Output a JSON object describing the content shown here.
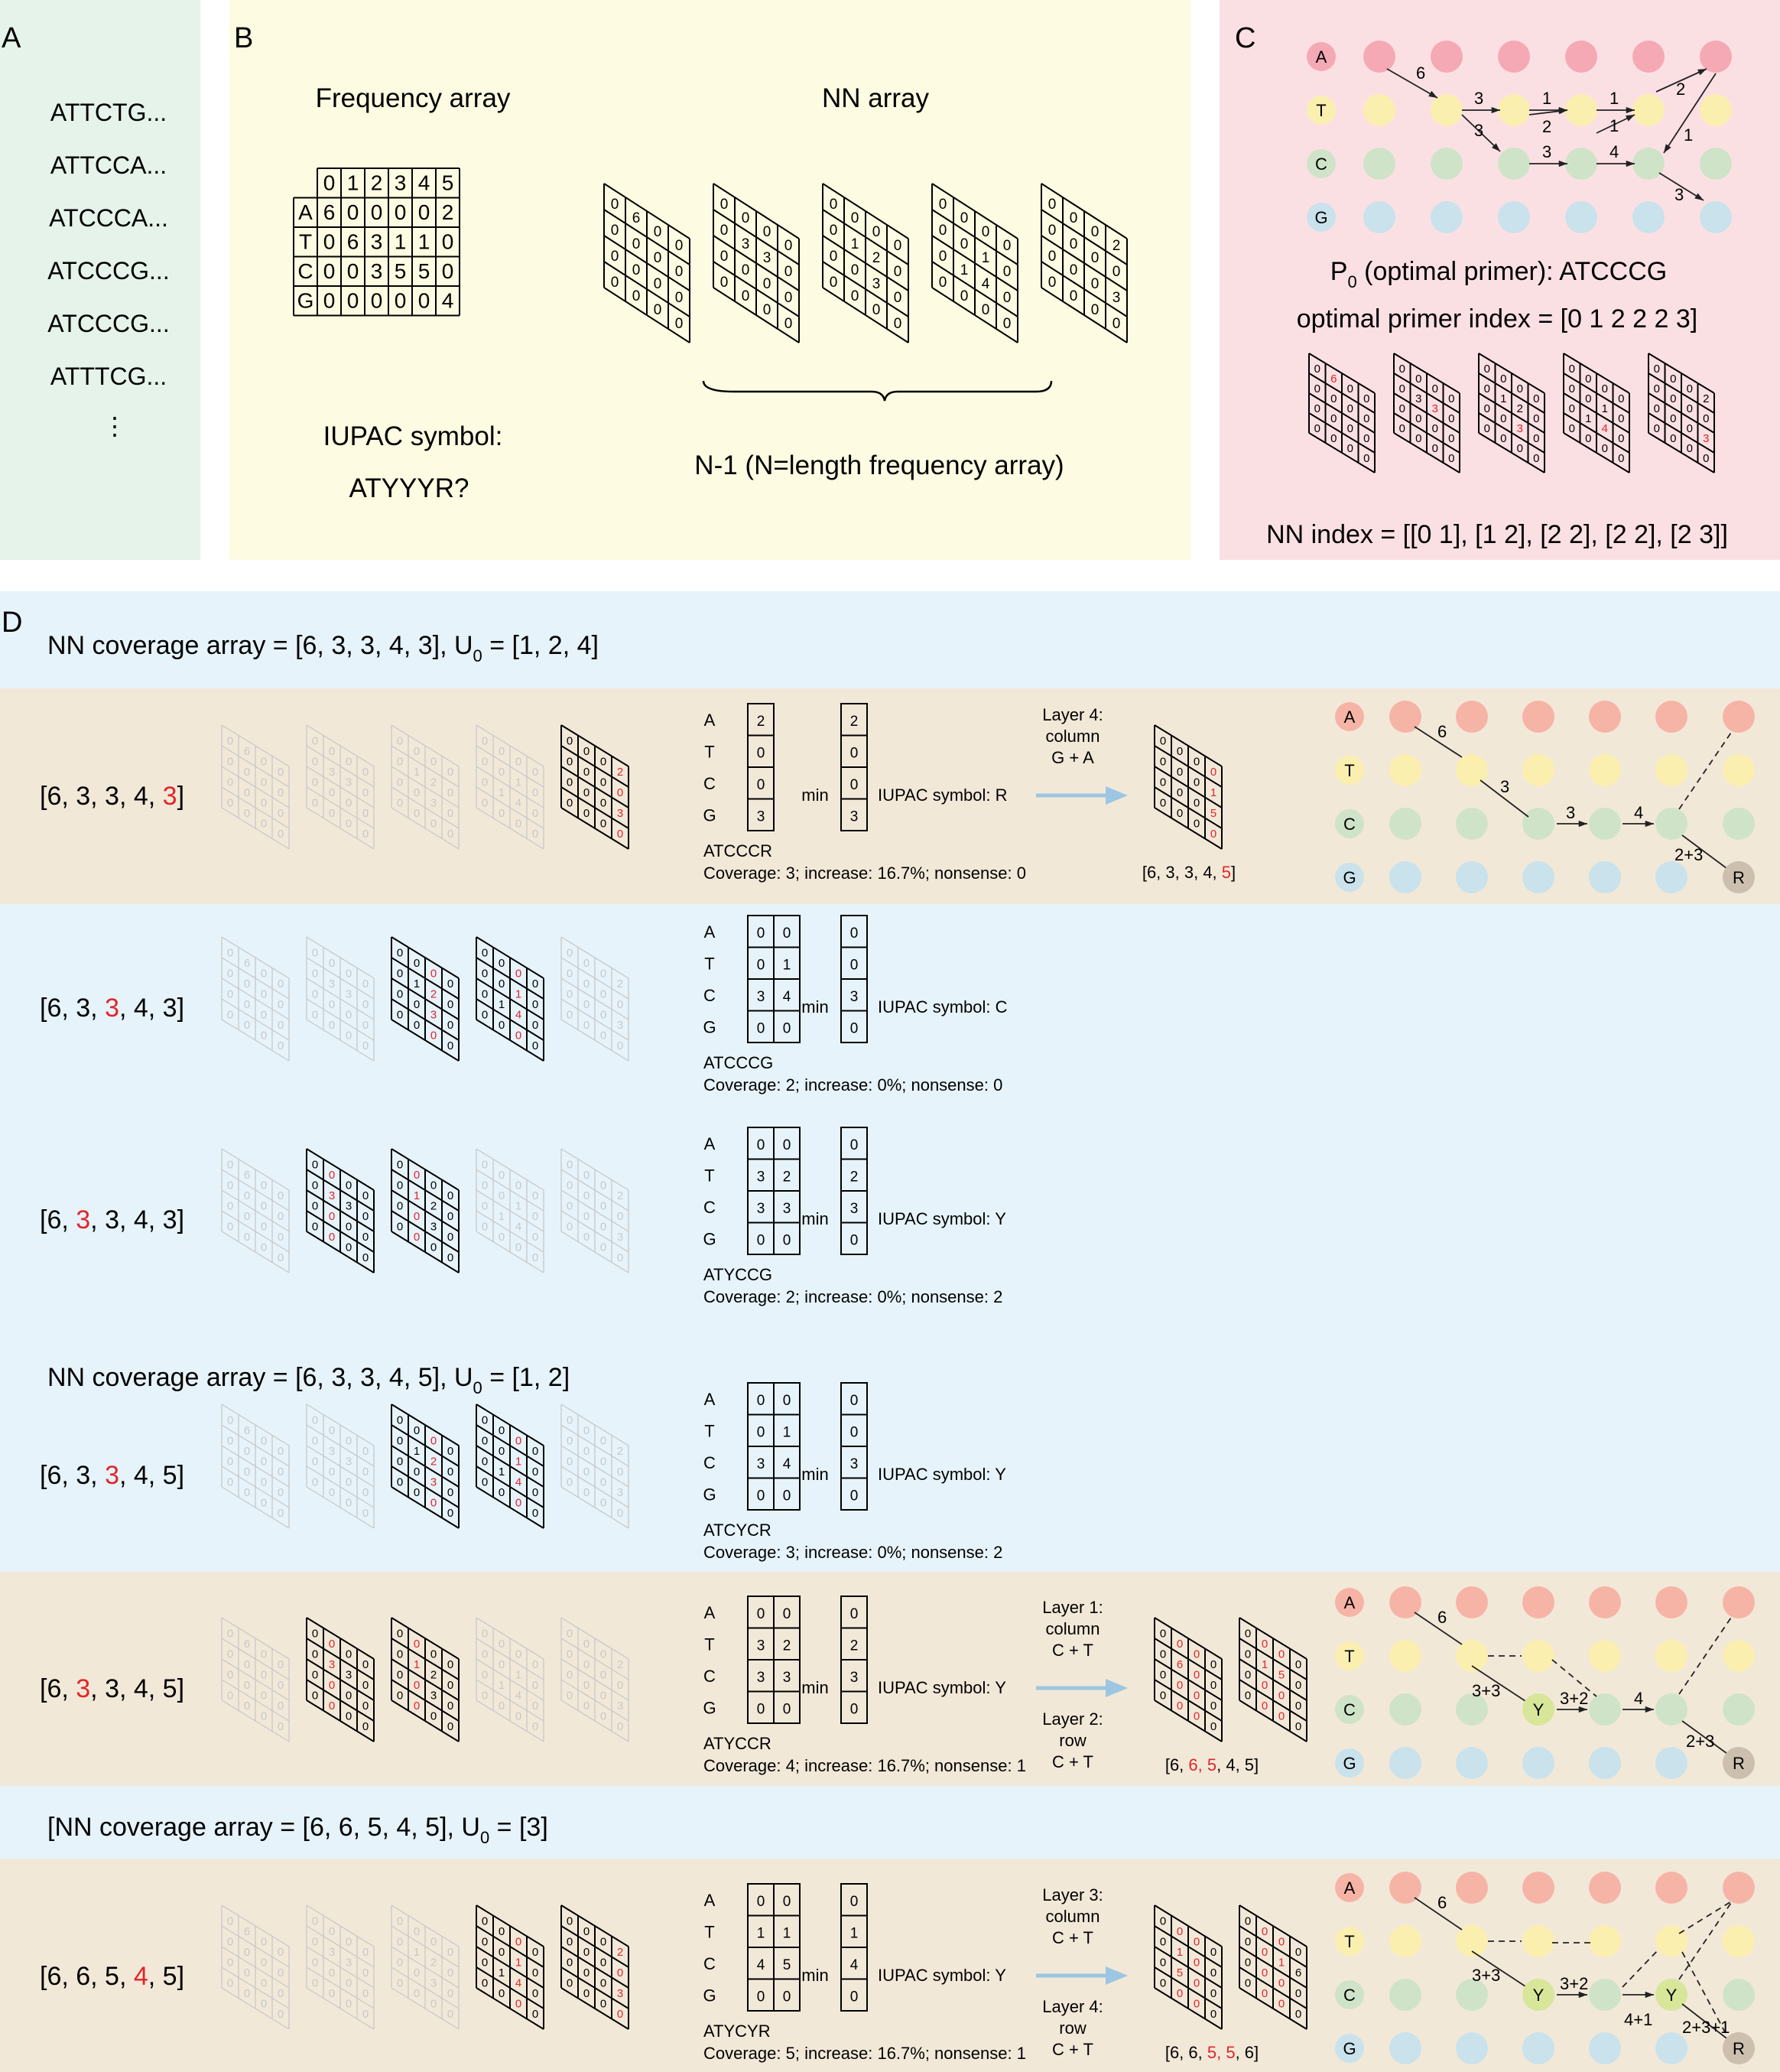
{
  "panelA": {
    "letter": "A",
    "sequences": [
      "ATTCTG...",
      "ATTCCA...",
      "ATCCCA...",
      "ATCCCG...",
      "ATCCCG...",
      "ATTTCG..."
    ],
    "ellipsis": "⋮"
  },
  "panelB": {
    "letter": "B",
    "freq_title": "Frequency array",
    "nn_title": "NN array",
    "freq_header": [
      "0",
      "1",
      "2",
      "3",
      "4",
      "5"
    ],
    "freq_rows": [
      {
        "base": "A",
        "values": [
          "6",
          "0",
          "0",
          "0",
          "0",
          "2"
        ]
      },
      {
        "base": "T",
        "values": [
          "0",
          "6",
          "3",
          "1",
          "1",
          "0"
        ]
      },
      {
        "base": "C",
        "values": [
          "0",
          "0",
          "3",
          "5",
          "5",
          "0"
        ]
      },
      {
        "base": "G",
        "values": [
          "0",
          "0",
          "0",
          "0",
          "0",
          "4"
        ]
      }
    ],
    "iupac_label": "IUPAC symbol:",
    "iupac_value": "ATYYYR?",
    "n_minus_1": "N-1 (N=length frequency array)"
  },
  "panelC": {
    "letter": "C",
    "bases": [
      "A",
      "T",
      "C",
      "G"
    ],
    "edge_labels": [
      "6",
      "3",
      "3",
      "1",
      "2",
      "1",
      "1",
      "3",
      "4",
      "2",
      "1",
      "3"
    ],
    "p0_prefix": "P",
    "p0_sub": "0",
    "p0_rest": " (optimal primer): ATCCCG",
    "optimal_index": "optimal primer index = [0 1 2 2 2 3]",
    "nn_index": "NN index = [[0 1], [1 2], [2 2], [2 2], [2 3]]"
  },
  "panelD": {
    "letter": "D",
    "coverage1_prefix": "NN coverage array = [6, 3, 3, 4, 3],   U",
    "coverage1_sub": "0",
    "coverage1_suffix": " = [1, 2, 4]",
    "coverage2_prefix": "NN coverage array = [6, 3, 3, 4, 5],   U",
    "coverage2_sub": "0",
    "coverage2_suffix": " = [1, 2]",
    "coverage3_prefix": "[NN coverage array = [6, 6, 5, 4, 5],   U",
    "coverage3_sub": "0",
    "coverage3_suffix": " = [3]",
    "bases": [
      "A",
      "T",
      "C",
      "G"
    ],
    "min_label": "min",
    "rows": [
      {
        "arr_pre": "[6, 3, 3, 4, ",
        "arr_red": "3",
        "arr_post": "]",
        "col1": [
          "2",
          "0",
          "0",
          "3"
        ],
        "col2": null,
        "min": [
          "2",
          "0",
          "0",
          "3"
        ],
        "iupac": "IUPAC symbol: R",
        "seq": "ATCCCR",
        "cov": "Coverage: 3; increase: 16.7%; nonsense: 0",
        "op1": "Layer 4:",
        "op1b": "column",
        "op1c": "G + A",
        "op2": "",
        "op2b": "",
        "op2c": "",
        "result_pre": "[6, 3, 3, 4, ",
        "result_red": "5",
        "result_post": "]"
      },
      {
        "arr_pre": "[6, 3, ",
        "arr_red": "3",
        "arr_post": ", 4, 3]",
        "col1": [
          "0",
          "0",
          "3",
          "0"
        ],
        "col2": [
          "0",
          "1",
          "4",
          "0"
        ],
        "min": [
          "0",
          "0",
          "3",
          "0"
        ],
        "iupac": "IUPAC symbol: C",
        "seq": "ATCCCG",
        "cov": "Coverage: 2; increase: 0%; nonsense: 0"
      },
      {
        "arr_pre": "[6, ",
        "arr_red": "3",
        "arr_post": ", 3, 4, 3]",
        "col1": [
          "0",
          "3",
          "3",
          "0"
        ],
        "col2": [
          "0",
          "2",
          "3",
          "0"
        ],
        "min": [
          "0",
          "2",
          "3",
          "0"
        ],
        "iupac": "IUPAC symbol: Y",
        "seq": "ATYCCG",
        "cov": "Coverage: 2; increase: 0%; nonsense: 2"
      },
      {
        "arr_pre": "[6, 3, ",
        "arr_red": "3",
        "arr_post": ", 4, 5]",
        "col1": [
          "0",
          "0",
          "3",
          "0"
        ],
        "col2": [
          "0",
          "1",
          "4",
          "0"
        ],
        "min": [
          "0",
          "0",
          "3",
          "0"
        ],
        "iupac": "IUPAC symbol: Y",
        "seq": "ATCYCR",
        "cov": "Coverage: 3; increase: 0%; nonsense: 2"
      },
      {
        "arr_pre": "[6, ",
        "arr_red": "3",
        "arr_post": ", 3, 4, 5]",
        "col1": [
          "0",
          "3",
          "3",
          "0"
        ],
        "col2": [
          "0",
          "2",
          "3",
          "0"
        ],
        "min": [
          "0",
          "2",
          "3",
          "0"
        ],
        "iupac": "IUPAC symbol: Y",
        "seq": "ATYCCR",
        "cov": "Coverage: 4; increase: 16.7%; nonsense: 1",
        "op1": "Layer 1:",
        "op1b": "column",
        "op1c": "C + T",
        "op2": "Layer 2:",
        "op2b": "row",
        "op2c": "C + T",
        "result_pre": "[6, ",
        "result_red": "6, 5",
        "result_post": ", 4, 5]"
      },
      {
        "arr_pre": "[6, 6, 5, ",
        "arr_red": "4",
        "arr_post": ", 5]",
        "col1": [
          "0",
          "1",
          "4",
          "0"
        ],
        "col2": [
          "0",
          "1",
          "5",
          "0"
        ],
        "min": [
          "0",
          "1",
          "4",
          "0"
        ],
        "iupac": "IUPAC symbol: Y",
        "seq": "ATYCYR",
        "cov": "Coverage: 5; increase: 16.7%; nonsense: 1",
        "op1": "Layer 3:",
        "op1b": "column",
        "op1c": "C + T",
        "op2": "Layer 4:",
        "op2b": "row",
        "op2c": "C + T",
        "result_pre": "[6, 6, ",
        "result_red": "5, 5",
        "result_post": ", 6]"
      }
    ],
    "graph1": {
      "labels": [
        "6",
        "3",
        "3",
        "4",
        "2+3"
      ],
      "node": "R"
    },
    "graph2": {
      "labels": [
        "6",
        "3+3",
        "3+2",
        "4",
        "2+3"
      ],
      "node_y": "Y",
      "node": "R"
    },
    "graph3": {
      "labels": [
        "6",
        "3+3",
        "3+2",
        "4+1",
        "2+3+1"
      ],
      "node_y1": "Y",
      "node_y2": "Y",
      "node": "R"
    }
  },
  "colors": {
    "panelA_bg": "#e5f3ea",
    "panelB_bg": "#fdfbe2",
    "panelC_bg": "#fbe0e3",
    "panelD_blue": "#e6f3fa",
    "panelD_tan": "#f2e8d8",
    "red": "#e0262b",
    "arrow": "#9cc6e2",
    "node_A": "#f5a9b5",
    "node_T": "#fbefb0",
    "node_C": "#cfe3c8",
    "node_G": "#c9e2ec",
    "node_R": "#cdbfae",
    "node_Y": "#d8e69a"
  }
}
